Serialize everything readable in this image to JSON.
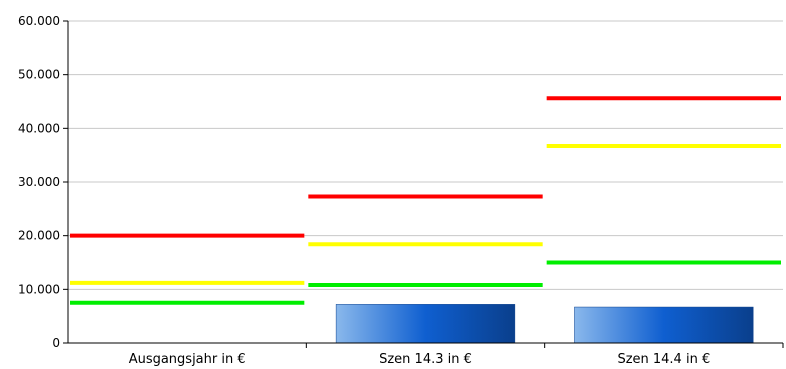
{
  "chart_data": {
    "type": "bar",
    "categories": [
      "Ausgangsjahr in €",
      "Szen 14.3 in €",
      "Szen 14.4 in €"
    ],
    "ylim": [
      0,
      60000
    ],
    "yticks": [
      0,
      10000,
      20000,
      30000,
      40000,
      50000,
      60000
    ],
    "ytick_labels": [
      "0",
      "10.000",
      "20.000",
      "30.000",
      "40.000",
      "50.000",
      "60.000"
    ],
    "grid": true,
    "series": [
      {
        "values": [
          0,
          7200,
          6700
        ],
        "color": "#1a63c4"
      }
    ],
    "reference_lines": [
      {
        "color": "#ff0000",
        "values": [
          20000,
          27300,
          45600
        ]
      },
      {
        "color": "#ffff00",
        "values": [
          11200,
          18400,
          36700
        ]
      },
      {
        "color": "#00ee00",
        "values": [
          7500,
          10800,
          15000
        ]
      }
    ]
  }
}
